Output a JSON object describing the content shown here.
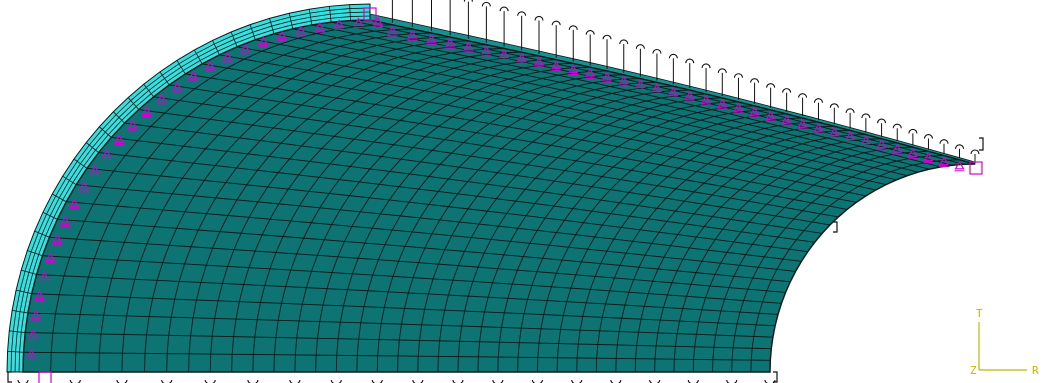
{
  "viewport": {
    "background": "#ffffff",
    "model": {
      "shell_colors": {
        "inner_face": "#0e7373",
        "outer_face": "#36e0e0",
        "mesh_line": "#0a1a1a"
      },
      "mesh": {
        "circumferential_divisions": 28,
        "axial_divisions": 36,
        "thickness_layers": 4
      },
      "boundary_condition_symbols": {
        "symmetry_marker": "magenta-triangle-icon",
        "fixed_marker": "black-hook-icon",
        "reference_point": "magenta-square-icon",
        "colors": {
          "symmetry": "#d400d4",
          "fixed": "#111111"
        }
      }
    },
    "triad": {
      "axis_color": "#c8b400",
      "labels": {
        "vertical": "T",
        "horizontal": "R",
        "origin": "Z"
      }
    }
  }
}
